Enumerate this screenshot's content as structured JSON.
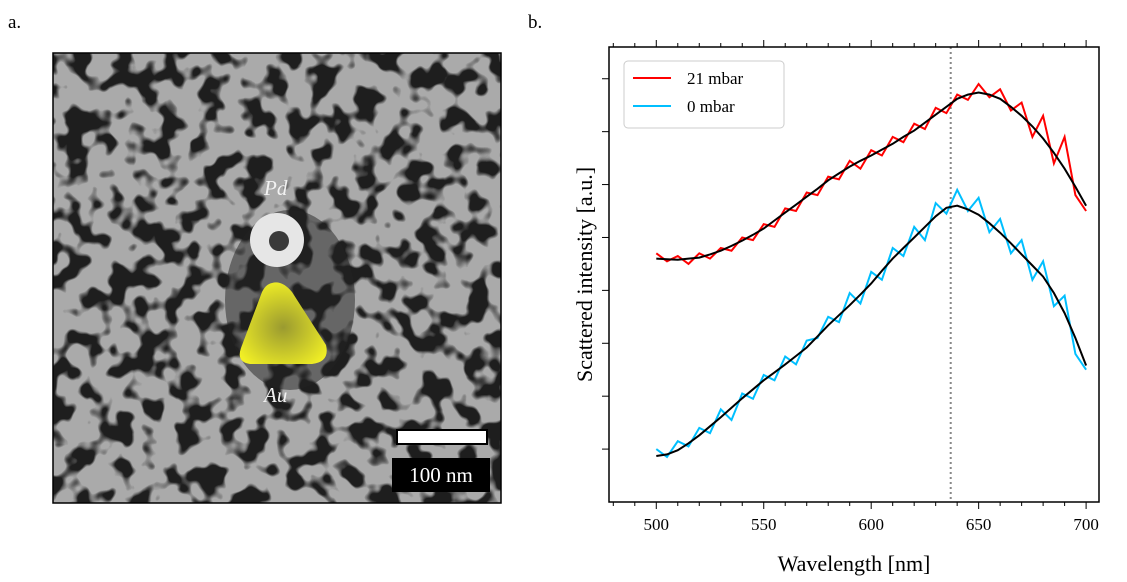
{
  "panel_labels": [
    "a.",
    "b."
  ],
  "image": {
    "labels": [
      "Pd",
      "Au"
    ],
    "scale_bar": "100 nm"
  },
  "chart_data": {
    "type": "line",
    "xlabel": "Wavelength [nm]",
    "ylabel": "Scattered intensity [a.u.]",
    "xlim": [
      478,
      706
    ],
    "xticks": [
      500,
      550,
      600,
      650,
      700
    ],
    "xminorticks": [
      480,
      490,
      510,
      520,
      530,
      540,
      560,
      570,
      580,
      590,
      610,
      620,
      630,
      640,
      660,
      670,
      680,
      690
    ],
    "ylim": [
      0,
      8.6
    ],
    "yticks": [
      1,
      2,
      3,
      4,
      5,
      6,
      7,
      8
    ],
    "vline": 637,
    "legend": "upper left",
    "fit_color": "#000000",
    "x": [
      500,
      505,
      510,
      515,
      520,
      525,
      530,
      535,
      540,
      545,
      550,
      555,
      560,
      565,
      570,
      575,
      580,
      585,
      590,
      595,
      600,
      605,
      610,
      615,
      620,
      625,
      630,
      635,
      640,
      645,
      650,
      655,
      660,
      665,
      670,
      675,
      680,
      685,
      690,
      695,
      700
    ],
    "series": [
      {
        "name": "21 mbar",
        "color": "#ff0000",
        "values": [
          4.7,
          4.55,
          4.65,
          4.5,
          4.7,
          4.6,
          4.8,
          4.75,
          5.0,
          4.95,
          5.25,
          5.2,
          5.55,
          5.5,
          5.85,
          5.8,
          6.15,
          6.1,
          6.45,
          6.3,
          6.65,
          6.55,
          6.9,
          6.8,
          7.15,
          7.05,
          7.45,
          7.35,
          7.7,
          7.6,
          7.9,
          7.65,
          7.8,
          7.4,
          7.55,
          6.9,
          7.3,
          6.4,
          6.9,
          5.8,
          5.5
        ],
        "fit": [
          4.6,
          4.59,
          4.58,
          4.6,
          4.62,
          4.68,
          4.75,
          4.84,
          4.94,
          5.05,
          5.17,
          5.32,
          5.47,
          5.62,
          5.77,
          5.92,
          6.08,
          6.21,
          6.34,
          6.45,
          6.55,
          6.66,
          6.77,
          6.9,
          7.02,
          7.17,
          7.32,
          7.47,
          7.62,
          7.7,
          7.74,
          7.7,
          7.62,
          7.47,
          7.3,
          7.1,
          6.87,
          6.6,
          6.3,
          5.96,
          5.6
        ]
      },
      {
        "name": "0 mbar",
        "color": "#00bfff",
        "values": [
          1.0,
          0.85,
          1.15,
          1.05,
          1.4,
          1.3,
          1.75,
          1.55,
          2.05,
          1.95,
          2.4,
          2.3,
          2.75,
          2.6,
          3.05,
          3.1,
          3.5,
          3.4,
          3.95,
          3.75,
          4.35,
          4.2,
          4.8,
          4.65,
          5.2,
          4.95,
          5.65,
          5.45,
          5.9,
          5.5,
          5.75,
          5.1,
          5.35,
          4.7,
          4.95,
          4.2,
          4.55,
          3.7,
          3.9,
          2.8,
          2.5
        ],
        "fit": [
          0.87,
          0.9,
          0.98,
          1.11,
          1.26,
          1.43,
          1.6,
          1.78,
          1.96,
          2.13,
          2.3,
          2.45,
          2.6,
          2.76,
          2.92,
          3.13,
          3.34,
          3.53,
          3.72,
          3.92,
          4.13,
          4.37,
          4.6,
          4.8,
          5.0,
          5.2,
          5.4,
          5.56,
          5.6,
          5.53,
          5.43,
          5.27,
          5.09,
          4.89,
          4.68,
          4.47,
          4.26,
          3.95,
          3.57,
          3.1,
          2.58
        ]
      }
    ]
  }
}
